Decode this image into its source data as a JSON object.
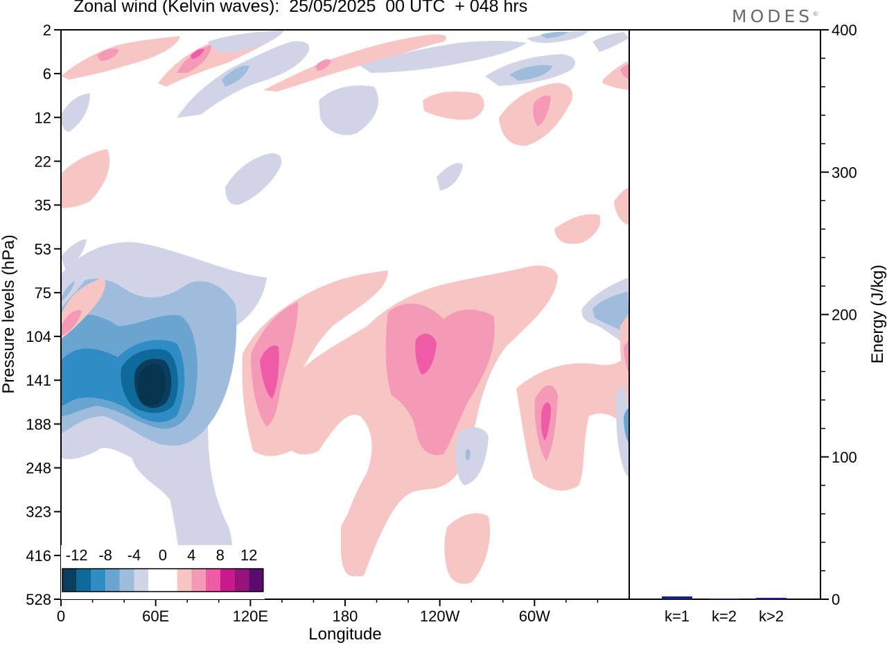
{
  "header": {
    "title": "Zonal wind (Kelvin waves):  25/05/2025  00 UTC  + 048 hrs",
    "brand": "MODES",
    "brand_mark": "©"
  },
  "colors": {
    "background": "#ffffff",
    "axes": "#000000",
    "bar_fill": "#1a237e",
    "palette": [
      "#0b3d5c",
      "#0f6a9b",
      "#2f8cc4",
      "#6aa5cf",
      "#9fbcdc",
      "#d1d3e7",
      "#ffffff",
      "#ffffff",
      "#f7c6c4",
      "#f59ab6",
      "#ef5ba6",
      "#c9198c",
      "#97127c",
      "#5b0a6e"
    ]
  },
  "chart_data": [
    {
      "type": "heatmap",
      "title": "Zonal wind (Kelvin waves):  25/05/2025  00 UTC  + 048 hrs",
      "xlabel": "Longitude",
      "ylabel": "Pressure levels (hPa)",
      "x_ticks": [
        "0",
        "60E",
        "120E",
        "180",
        "120W",
        "60W"
      ],
      "x_tick_values": [
        0,
        60,
        120,
        180,
        240,
        300
      ],
      "xlim": [
        0,
        360
      ],
      "y_ticks": [
        "2",
        "6",
        "12",
        "22",
        "35",
        "53",
        "75",
        "104",
        "141",
        "188",
        "248",
        "323",
        "416",
        "528"
      ],
      "y_scale": "model levels",
      "colorbar": {
        "labels": [
          "-12",
          "-8",
          "-4",
          "0",
          "4",
          "8",
          "12"
        ],
        "levels": [
          -14,
          -12,
          -10,
          -8,
          -6,
          -4,
          -2,
          0,
          2,
          4,
          6,
          8,
          10,
          12,
          14
        ],
        "location": "bottom-left"
      },
      "features": [
        {
          "name": "strong easterly anomaly",
          "lon": 58,
          "level": "141",
          "value": -14
        },
        {
          "name": "westerly anomaly",
          "lon": 130,
          "level": "141",
          "value": 8
        },
        {
          "name": "westerly anomaly",
          "lon": 235,
          "level": "141",
          "value": 7
        },
        {
          "name": "westerly anomaly",
          "lon": 300,
          "level": "188",
          "value": 7
        },
        {
          "name": "upper westerly",
          "lon": 85,
          "level": "6",
          "value": 8
        },
        {
          "name": "upper westerly",
          "lon": 305,
          "level": "12",
          "value": 7
        }
      ]
    },
    {
      "type": "bar",
      "categories": [
        "k=1",
        "k=2",
        "k>2"
      ],
      "values": [
        2,
        0.5,
        1
      ],
      "ylabel": "Energy (J/kg)",
      "ylim": [
        0,
        400
      ],
      "y_ticks": [
        "0",
        "100",
        "200",
        "300",
        "400"
      ],
      "y_tick_values": [
        0,
        100,
        200,
        300,
        400
      ],
      "y_axis_side": "right"
    }
  ]
}
